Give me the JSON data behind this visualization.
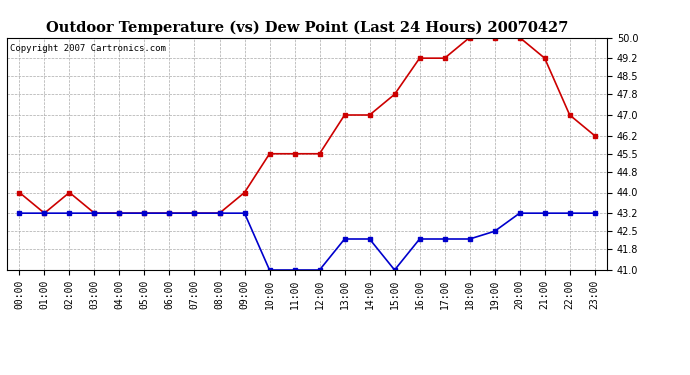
{
  "title": "Outdoor Temperature (vs) Dew Point (Last 24 Hours) 20070427",
  "copyright": "Copyright 2007 Cartronics.com",
  "hours": [
    0,
    1,
    2,
    3,
    4,
    5,
    6,
    7,
    8,
    9,
    10,
    11,
    12,
    13,
    14,
    15,
    16,
    17,
    18,
    19,
    20,
    21,
    22,
    23
  ],
  "temp": [
    44.0,
    43.2,
    44.0,
    43.2,
    43.2,
    43.2,
    43.2,
    43.2,
    43.2,
    44.0,
    45.5,
    45.5,
    45.5,
    47.0,
    47.0,
    47.8,
    49.2,
    49.2,
    50.0,
    50.0,
    50.0,
    49.2,
    47.0,
    46.2
  ],
  "dew": [
    43.2,
    43.2,
    43.2,
    43.2,
    43.2,
    43.2,
    43.2,
    43.2,
    43.2,
    43.2,
    41.0,
    41.0,
    41.0,
    42.2,
    42.2,
    41.0,
    42.2,
    42.2,
    42.2,
    42.5,
    43.2,
    43.2,
    43.2,
    43.2
  ],
  "temp_color": "#cc0000",
  "dew_color": "#0000cc",
  "background_color": "#ffffff",
  "plot_bg_color": "#ffffff",
  "grid_color": "#aaaaaa",
  "ylim": [
    41.0,
    50.0
  ],
  "yticks": [
    41.0,
    41.8,
    42.5,
    43.2,
    44.0,
    44.8,
    45.5,
    46.2,
    47.0,
    47.8,
    48.5,
    49.2,
    50.0
  ],
  "marker": "s",
  "marker_size": 3,
  "line_width": 1.2,
  "title_fontsize": 10.5,
  "copyright_fontsize": 6.5,
  "tick_fontsize": 7
}
